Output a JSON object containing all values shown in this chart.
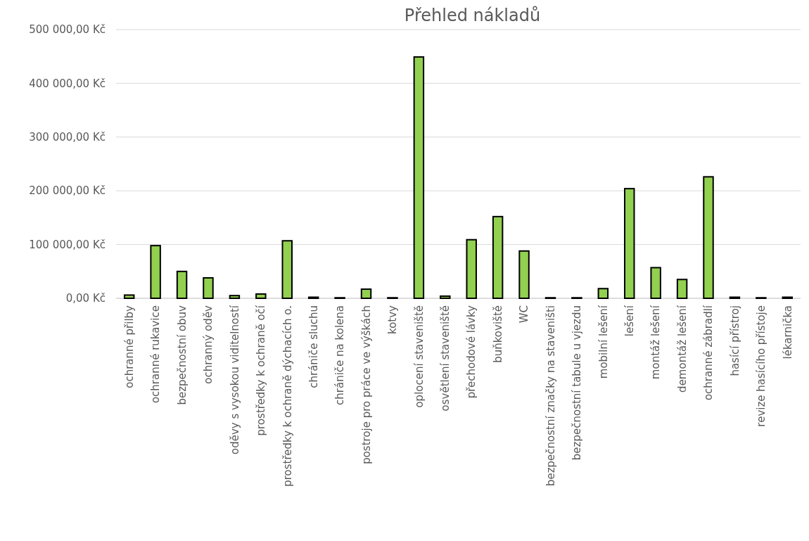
{
  "chart_data": {
    "type": "bar",
    "title": "Přehled nákladů",
    "categories": [
      "ochranné přilby",
      "ochranné rukavice",
      "bezpečnostní obuv",
      "ochranný oděv",
      "oděvy s vysokou viditelností",
      "prostředky k ochraně očí",
      "prostředky k ochraně dýchacích o.",
      "chrániče sluchu",
      "chrániče na kolena",
      "postroje pro práce ve výškách",
      "kotvy",
      "oplocení staveniště",
      "osvětlení staveniště",
      "přechodové lávky",
      "buňkoviště",
      "WC",
      "bezpečnostní značky na staveništi",
      "bezpečnostní tabule u vjezdu",
      "mobilní lešení",
      "lešení",
      "montáž lešení",
      "demontáž lešení",
      "ochranné zábradlí",
      "hasící přístroj",
      "revize hasícího přístoje",
      "lékarnička"
    ],
    "values": [
      6000,
      98000,
      50000,
      38000,
      5000,
      8000,
      107000,
      2000,
      1000,
      17000,
      1000,
      449000,
      4000,
      109000,
      152000,
      88000,
      1000,
      1000,
      18000,
      204000,
      57000,
      35000,
      226000,
      2000,
      1000,
      2000
    ],
    "color": "#92d050",
    "ylim": [
      0,
      500000
    ],
    "yticks": [
      {
        "value": 0,
        "label": "0,00 Kč"
      },
      {
        "value": 100000,
        "label": "100 000,00 Kč"
      },
      {
        "value": 200000,
        "label": "200 000,00 Kč"
      },
      {
        "value": 300000,
        "label": "300 000,00 Kč"
      },
      {
        "value": 400000,
        "label": "400 000,00 Kč"
      },
      {
        "value": 500000,
        "label": "500 000,00 Kč"
      }
    ],
    "grid": "y"
  }
}
